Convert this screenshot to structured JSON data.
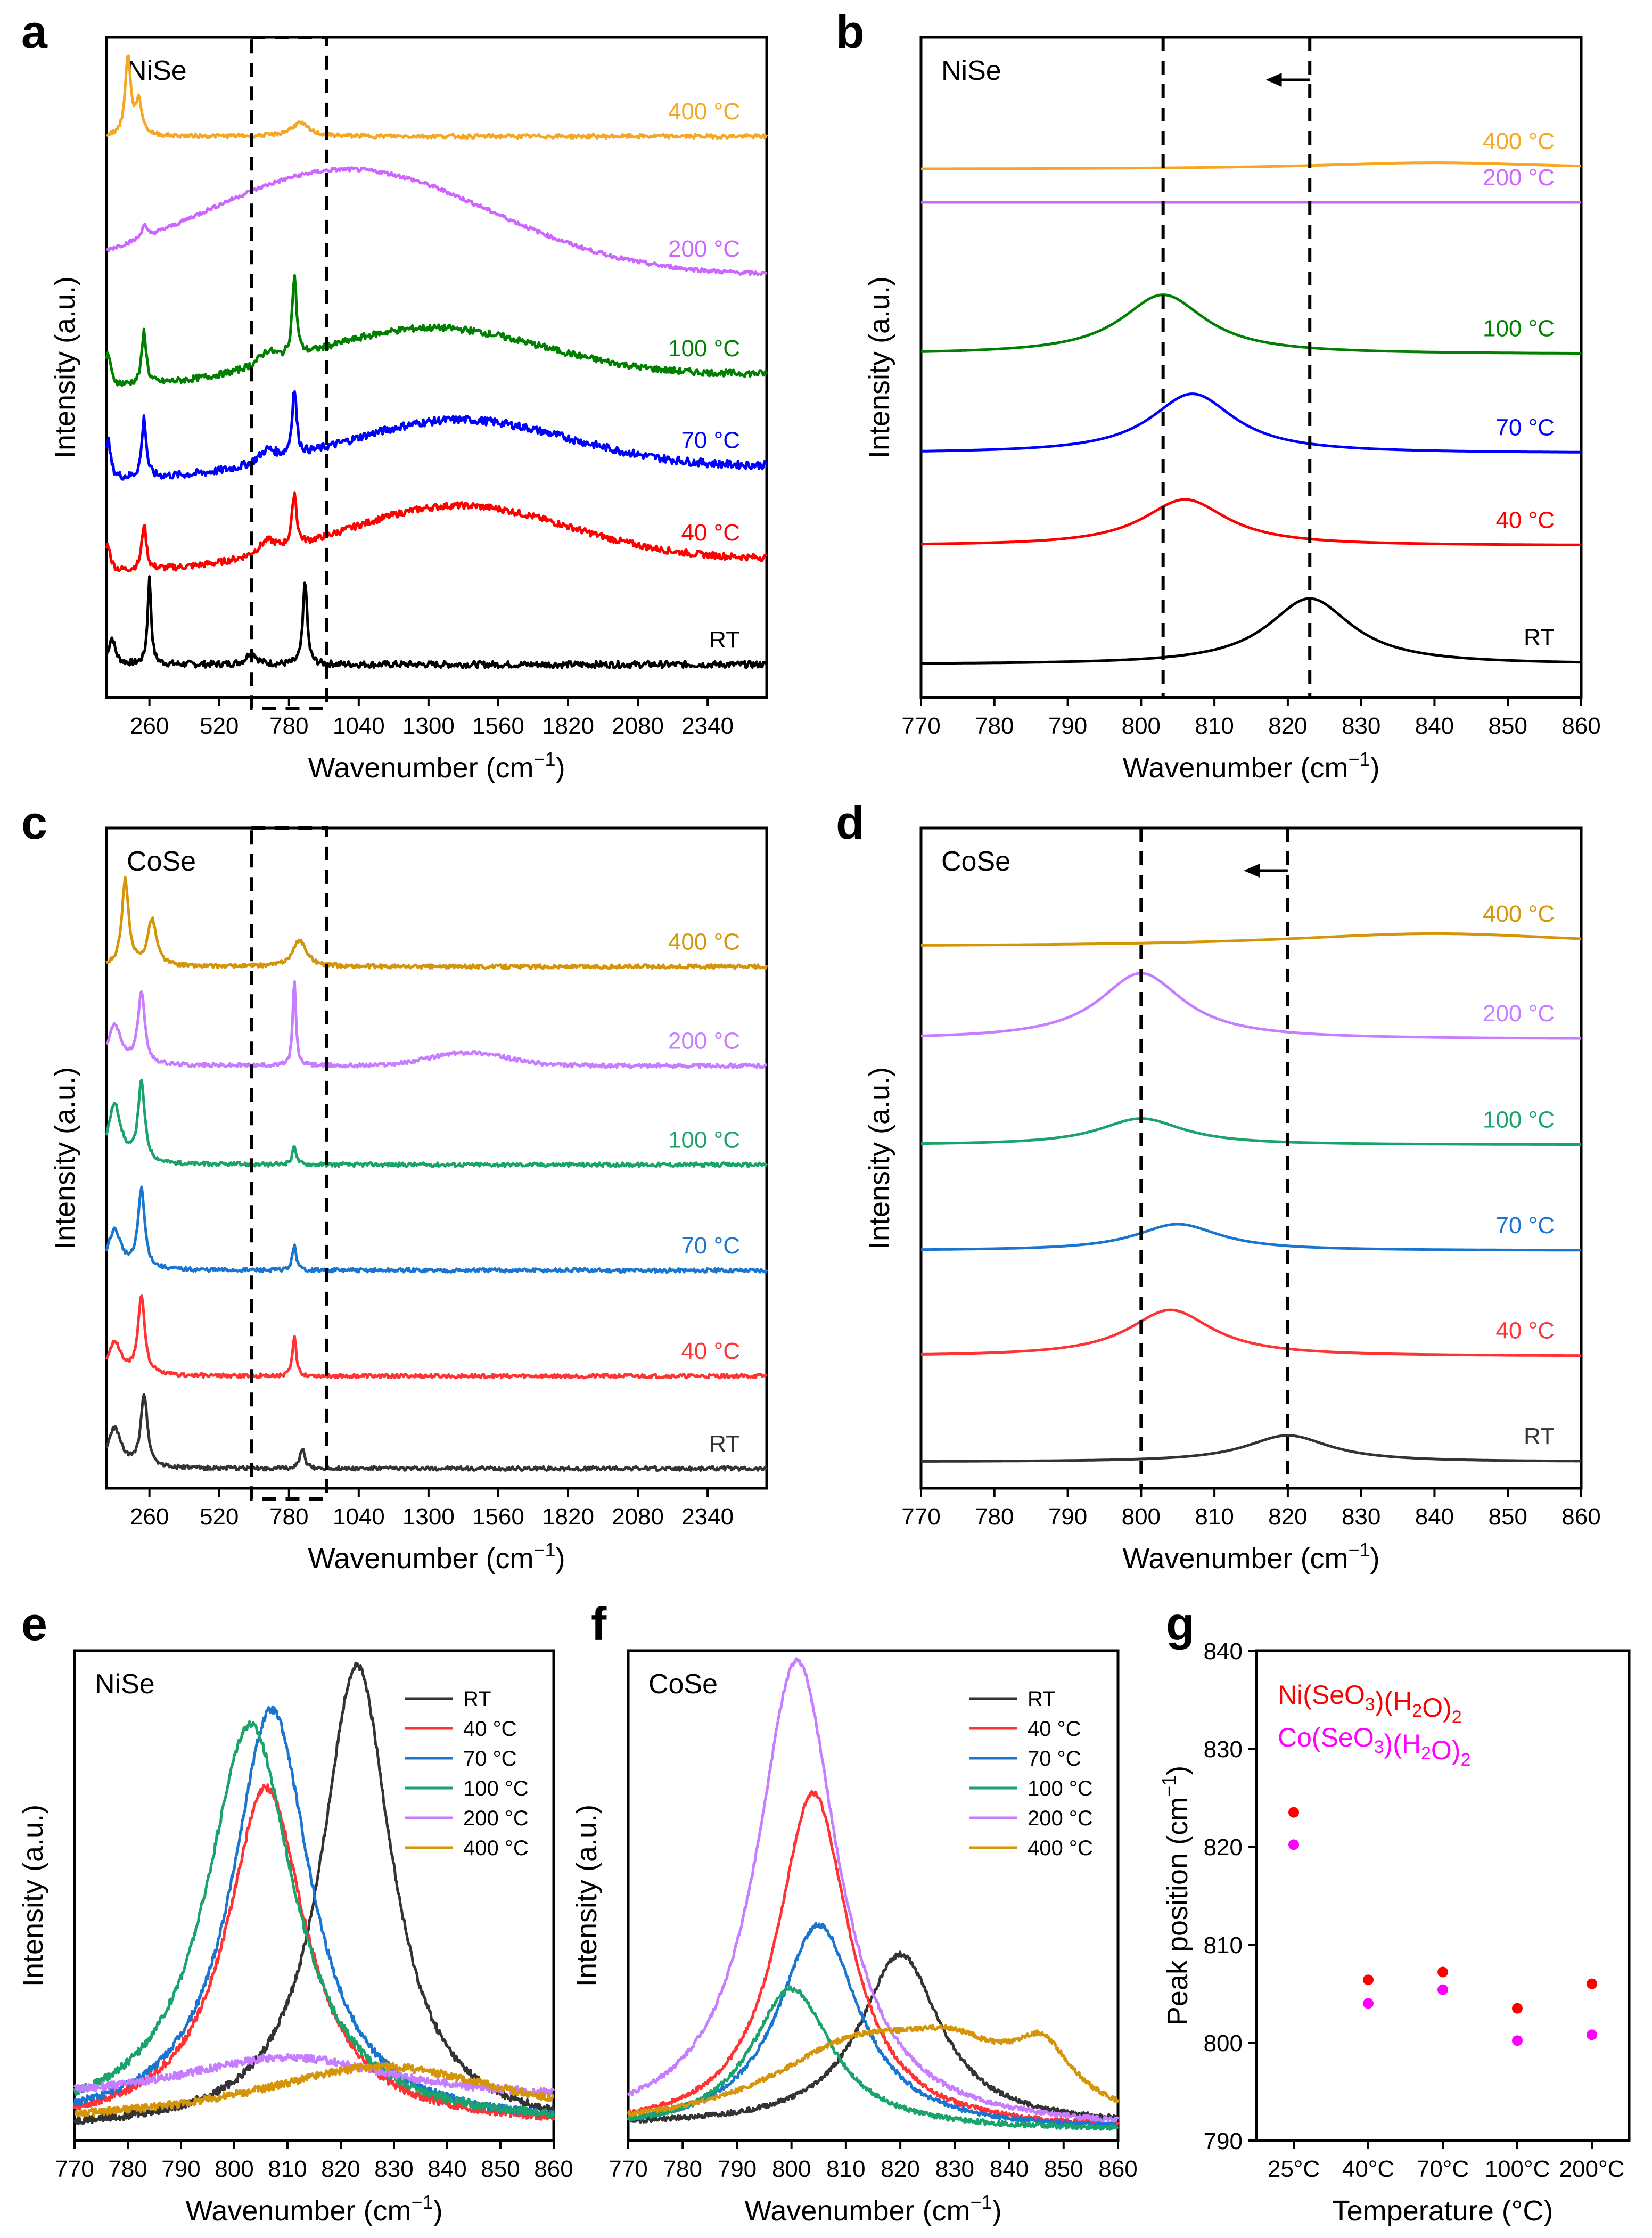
{
  "chart_data": [
    {
      "id": "a",
      "panel_label": "a",
      "type": "line",
      "inset_text": "NiSe",
      "xlabel": "Wavenumber (cm",
      "xlabel_sup": "−1",
      "xlabel_end": ")",
      "ylabel": "Intensity (a.u.)",
      "xlim": [
        100,
        2560
      ],
      "ylim": [
        0,
        100
      ],
      "xticks": [
        260,
        520,
        780,
        1040,
        1300,
        1560,
        1820,
        2080,
        2340
      ],
      "box": [
        640,
        920
      ],
      "series": [
        {
          "name": "RT",
          "label": "RT",
          "color": "#000000",
          "base": 5,
          "noise": 0.5,
          "peaks": [
            [
              120,
              4,
              15
            ],
            [
              260,
              13,
              8
            ],
            [
              640,
              2,
              20
            ],
            [
              840,
              13,
              9
            ]
          ],
          "hump": [
            0,
            1,
            1
          ]
        },
        {
          "name": "40 °C",
          "label": "40 °C",
          "color": "#ff0000",
          "base": 19,
          "noise": 0.5,
          "slope": 2,
          "peaks": [
            [
              105,
              4,
              12
            ],
            [
              240,
              7,
              10
            ],
            [
              700,
              2,
              40
            ],
            [
              800,
              8,
              10
            ]
          ],
          "hump": [
            1400,
            9,
            600
          ]
        },
        {
          "name": "70 °C",
          "label": "70 °C",
          "color": "#0000ff",
          "base": 33,
          "noise": 0.6,
          "slope": 2,
          "peaks": [
            [
              105,
              6,
              12
            ],
            [
              240,
              9,
              10
            ],
            [
              700,
              2,
              40
            ],
            [
              800,
              10,
              10
            ]
          ],
          "hump": [
            1400,
            8,
            600
          ]
        },
        {
          "name": "100 °C",
          "label": "100 °C",
          "color": "#008000",
          "base": 47,
          "noise": 0.5,
          "slope": 2,
          "peaks": [
            [
              105,
              5,
              12
            ],
            [
              240,
              8,
              10
            ],
            [
              700,
              2,
              40
            ],
            [
              800,
              12,
              10
            ]
          ],
          "hump": [
            1300,
            8,
            600
          ]
        },
        {
          "name": "200 °C",
          "label": "200 °C",
          "color": "#cc66ff",
          "base": 64,
          "noise": 0.3,
          "peaks": [
            [
              240,
              2,
              10
            ]
          ],
          "hump": [
            1000,
            16,
            750
          ]
        },
        {
          "name": "400 °C",
          "label": "400 °C",
          "color": "#f5a623",
          "base": 85,
          "noise": 0.3,
          "peaks": [
            [
              180,
              12,
              12
            ],
            [
              220,
              5,
              15
            ],
            [
              820,
              2,
              40
            ]
          ],
          "hump": [
            0,
            1,
            1
          ]
        }
      ]
    },
    {
      "id": "b",
      "panel_label": "b",
      "type": "line",
      "inset_text": "NiSe",
      "xlabel": "Wavenumber (cm",
      "xlabel_sup": "−1",
      "xlabel_end": ")",
      "ylabel": "Intensity (a.u.)",
      "xlim": [
        770,
        860
      ],
      "ylim": [
        0,
        100
      ],
      "xticks": [
        770,
        780,
        790,
        800,
        810,
        820,
        830,
        840,
        850,
        860
      ],
      "vlines": [
        803,
        823
      ],
      "arrow": [
        823,
        817
      ],
      "series": [
        {
          "name": "RT",
          "label": "RT",
          "color": "#000000",
          "base": 5,
          "noise": 0,
          "peaks": [
            [
              823,
              10,
              7
            ]
          ]
        },
        {
          "name": "40 °C",
          "label": "40 °C",
          "color": "#ff0000",
          "base": 23,
          "noise": 0,
          "peaks": [
            [
              806,
              7,
              7
            ]
          ]
        },
        {
          "name": "70 °C",
          "label": "70 °C",
          "color": "#0000ff",
          "base": 37,
          "noise": 0,
          "peaks": [
            [
              807,
              9,
              7
            ]
          ]
        },
        {
          "name": "100 °C",
          "label": "100 °C",
          "color": "#008000",
          "base": 52,
          "noise": 0,
          "peaks": [
            [
              803,
              9,
              7
            ]
          ]
        },
        {
          "name": "200 °C",
          "label": "200 °C",
          "color": "#cc66ff",
          "base": 75,
          "noise": 0,
          "peaks": []
        },
        {
          "name": "400 °C",
          "label": "400 °C",
          "color": "#f5a623",
          "base": 80,
          "noise": 0,
          "peaks": [
            [
              840,
              1,
              20
            ]
          ]
        }
      ]
    },
    {
      "id": "c",
      "panel_label": "c",
      "type": "line",
      "inset_text": "CoSe",
      "xlabel": "Wavenumber (cm",
      "xlabel_sup": "−1",
      "xlabel_end": ")",
      "ylabel": "Intensity (a.u.)",
      "xlim": [
        100,
        2560
      ],
      "ylim": [
        0,
        100
      ],
      "xticks": [
        260,
        520,
        780,
        1040,
        1300,
        1560,
        1820,
        2080,
        2340
      ],
      "box": [
        640,
        920
      ],
      "series": [
        {
          "name": "RT",
          "label": "RT",
          "color": "#333333",
          "base": 3,
          "noise": 0.3,
          "peaks": [
            [
              130,
              6,
              30
            ],
            [
              240,
              11,
              15
            ],
            [
              830,
              3,
              10
            ]
          ],
          "hump": [
            0,
            1,
            1
          ]
        },
        {
          "name": "40 °C",
          "label": "40 °C",
          "color": "#ff3333",
          "base": 17,
          "noise": 0.3,
          "peaks": [
            [
              130,
              5,
              30
            ],
            [
              230,
              12,
              15
            ],
            [
              800,
              6,
              8
            ]
          ],
          "hump": [
            0,
            1,
            1
          ]
        },
        {
          "name": "70 °C",
          "label": "70 °C",
          "color": "#1a75d1",
          "base": 33,
          "noise": 0.3,
          "peaks": [
            [
              130,
              6,
              30
            ],
            [
              230,
              12,
              15
            ],
            [
              800,
              4,
              8
            ]
          ],
          "hump": [
            0,
            1,
            1
          ]
        },
        {
          "name": "100 °C",
          "label": "100 °C",
          "color": "#1aa36b",
          "base": 49,
          "noise": 0.3,
          "peaks": [
            [
              130,
              9,
              30
            ],
            [
              230,
              12,
              15
            ],
            [
              800,
              3,
              8
            ]
          ],
          "hump": [
            0,
            1,
            1
          ]
        },
        {
          "name": "200 °C",
          "label": "200 °C",
          "color": "#c77dff",
          "base": 64,
          "noise": 0.3,
          "peaks": [
            [
              130,
              6,
              30
            ],
            [
              230,
              11,
              15
            ],
            [
              800,
              13,
              7
            ]
          ],
          "hump": [
            1450,
            2,
            200
          ]
        },
        {
          "name": "400 °C",
          "label": "400 °C",
          "color": "#d4950a",
          "base": 79,
          "noise": 0.3,
          "peaks": [
            [
              170,
              13,
              15
            ],
            [
              270,
              7,
              20
            ],
            [
              820,
              4,
              30
            ]
          ],
          "hump": [
            0,
            1,
            1
          ]
        }
      ]
    },
    {
      "id": "d",
      "panel_label": "d",
      "type": "line",
      "inset_text": "CoSe",
      "xlabel": "Wavenumber (cm",
      "xlabel_sup": "−1",
      "xlabel_end": ")",
      "ylabel": "Intensity (a.u.)",
      "xlim": [
        770,
        860
      ],
      "ylim": [
        0,
        100
      ],
      "xticks": [
        770,
        780,
        790,
        800,
        810,
        820,
        830,
        840,
        850,
        860
      ],
      "vlines": [
        800,
        820
      ],
      "arrow": [
        820,
        814
      ],
      "series": [
        {
          "name": "RT",
          "label": "RT",
          "color": "#333333",
          "base": 4,
          "noise": 0,
          "peaks": [
            [
              820,
              4,
              7
            ]
          ]
        },
        {
          "name": "40 °C",
          "label": "40 °C",
          "color": "#ff3333",
          "base": 20,
          "noise": 0,
          "peaks": [
            [
              804,
              7,
              7
            ]
          ]
        },
        {
          "name": "70 °C",
          "label": "70 °C",
          "color": "#1a75d1",
          "base": 36,
          "noise": 0,
          "peaks": [
            [
              805,
              4,
              7
            ]
          ]
        },
        {
          "name": "100 °C",
          "label": "100 °C",
          "color": "#1aa36b",
          "base": 52,
          "noise": 0,
          "peaks": [
            [
              800,
              4,
              7
            ]
          ]
        },
        {
          "name": "200 °C",
          "label": "200 °C",
          "color": "#c77dff",
          "base": 68,
          "noise": 0,
          "peaks": [
            [
              800,
              10,
              7
            ]
          ]
        },
        {
          "name": "400 °C",
          "label": "400 °C",
          "color": "#d4950a",
          "base": 82,
          "noise": 0,
          "peaks": [
            [
              840,
              2,
              25
            ]
          ]
        }
      ]
    },
    {
      "id": "e",
      "panel_label": "e",
      "type": "line",
      "inset_text": "NiSe",
      "xlabel": "Wavenumber (cm",
      "xlabel_sup": "−1",
      "xlabel_end": ")",
      "ylabel": "Intensity (a.u.)",
      "xlim": [
        770,
        860
      ],
      "ylim": [
        0,
        100
      ],
      "xticks": [
        770,
        780,
        790,
        800,
        810,
        820,
        830,
        840,
        850,
        860
      ],
      "series": [
        {
          "name": "RT",
          "label": "RT",
          "color": "#333333",
          "base": 2,
          "noise": 0.8,
          "peaks": [
            [
              823,
              95,
              8
            ]
          ]
        },
        {
          "name": "40 °C",
          "label": "40 °C",
          "color": "#ff3333",
          "base": 3,
          "noise": 0.8,
          "peaks": [
            [
              806,
              69,
              9
            ]
          ]
        },
        {
          "name": "70 °C",
          "label": "70 °C",
          "color": "#1a75d1",
          "base": 3,
          "noise": 0.8,
          "peaks": [
            [
              807,
              85,
              9
            ]
          ]
        },
        {
          "name": "100 °C",
          "label": "100 °C",
          "color": "#1aa36b",
          "base": 3,
          "noise": 0.8,
          "peaks": [
            [
              803,
              82,
              10
            ]
          ]
        },
        {
          "name": "200 °C",
          "label": "200 °C",
          "color": "#c77dff",
          "base": 8,
          "noise": 0.8,
          "peaks": [
            [
              810,
              9,
              25
            ]
          ]
        },
        {
          "name": "400 °C",
          "label": "400 °C",
          "color": "#d4950a",
          "base": 3,
          "noise": 0.8,
          "peaks": [
            [
              828,
              12,
              30
            ]
          ]
        }
      ]
    },
    {
      "id": "f",
      "panel_label": "f",
      "type": "line",
      "inset_text": "CoSe",
      "xlabel": "Wavenumber (cm",
      "xlabel_sup": "−1",
      "xlabel_end": ")",
      "ylabel": "Intensity (a.u.)",
      "xlim": [
        770,
        860
      ],
      "ylim": [
        0,
        100
      ],
      "xticks": [
        770,
        780,
        790,
        800,
        810,
        820,
        830,
        840,
        850,
        860
      ],
      "series": [
        {
          "name": "RT",
          "label": "RT",
          "color": "#333333",
          "base": 3,
          "noise": 0.5,
          "peaks": [
            [
              820,
              35,
              9
            ]
          ]
        },
        {
          "name": "40 °C",
          "label": "40 °C",
          "color": "#ff3333",
          "base": 2,
          "noise": 0.5,
          "peaks": [
            [
              804,
              69,
              8
            ]
          ]
        },
        {
          "name": "70 °C",
          "label": "70 °C",
          "color": "#1a75d1",
          "base": 2,
          "noise": 0.5,
          "peaks": [
            [
              805,
              42,
              9
            ]
          ]
        },
        {
          "name": "100 °C",
          "label": "100 °C",
          "color": "#1aa36b",
          "base": 2,
          "noise": 0.5,
          "peaks": [
            [
              800,
              29,
              9
            ]
          ]
        },
        {
          "name": "200 °C",
          "label": "200 °C",
          "color": "#c77dff",
          "base": 2,
          "noise": 0.5,
          "peaks": [
            [
              801,
              96,
              9
            ]
          ]
        },
        {
          "name": "400 °C",
          "label": "400 °C",
          "color": "#d4950a",
          "base": 2,
          "noise": 0.5,
          "peaks": [
            [
              812,
              16,
              20
            ],
            [
              830,
              10,
              12
            ],
            [
              846,
              12,
              7
            ]
          ]
        }
      ]
    },
    {
      "id": "g",
      "panel_label": "g",
      "type": "scatter",
      "xlabel": "Temperature (°C)",
      "ylabel": "Peak position (cm",
      "ylabel_sup": "−1",
      "ylabel_end": ")",
      "categories": [
        "25°C",
        "40°C",
        "70°C",
        "100°C",
        "200°C"
      ],
      "ylim": [
        790,
        840
      ],
      "yticks": [
        790,
        800,
        810,
        820,
        830,
        840
      ],
      "series": [
        {
          "name": "Ni(SeO3)(H2O)2",
          "color": "#ff0000",
          "values": [
            823.5,
            806.4,
            807.2,
            803.5,
            806.0
          ]
        },
        {
          "name": "Co(SeO3)(H2O)2",
          "color": "#ff00ff",
          "values": [
            820.2,
            804.0,
            805.4,
            800.2,
            800.8
          ]
        }
      ]
    }
  ]
}
